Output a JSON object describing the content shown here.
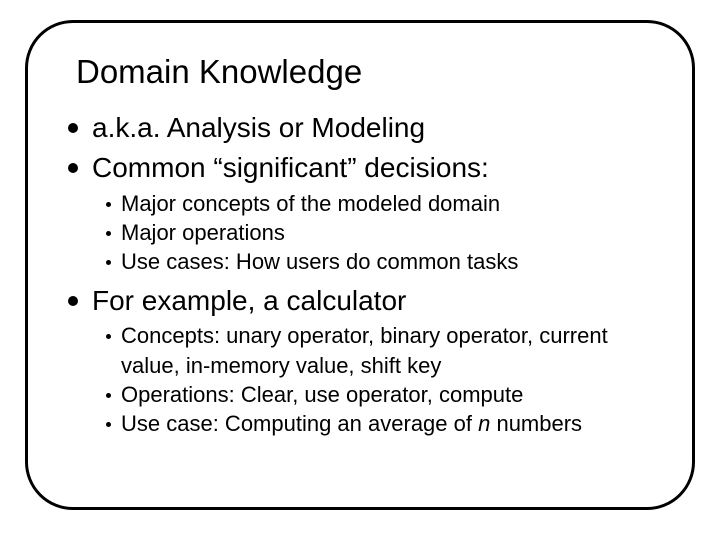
{
  "slide": {
    "title": "Domain Knowledge",
    "title_fontsize": 33,
    "border_color": "#000000",
    "border_width": 3,
    "border_radius": 48,
    "background_color": "#ffffff",
    "bullets": [
      {
        "text": "a.k.a. Analysis or Modeling",
        "fontsize": 28
      },
      {
        "text": "Common “significant” decisions:",
        "fontsize": 28,
        "subs": [
          {
            "text": "Major concepts of the modeled domain",
            "fontsize": 22
          },
          {
            "text": "Major operations",
            "fontsize": 22
          },
          {
            "text": "Use cases: How users do common tasks",
            "fontsize": 22
          }
        ]
      },
      {
        "text": "For example, a calculator",
        "fontsize": 28,
        "subs": [
          {
            "text_parts": [
              "Concepts: unary operator, binary operator, current value, in-memory value, shift key"
            ],
            "fontsize": 22
          },
          {
            "text_parts": [
              "Operations: Clear, use operator, compute"
            ],
            "fontsize": 22
          },
          {
            "text_parts_italic": {
              "pre": "Use case: Computing an average of ",
              "italic": "n",
              "post": " numbers"
            },
            "fontsize": 22
          }
        ]
      }
    ],
    "bullet_dot_color": "#000000",
    "sub_dot_color": "#000000",
    "text_color": "#000000"
  }
}
